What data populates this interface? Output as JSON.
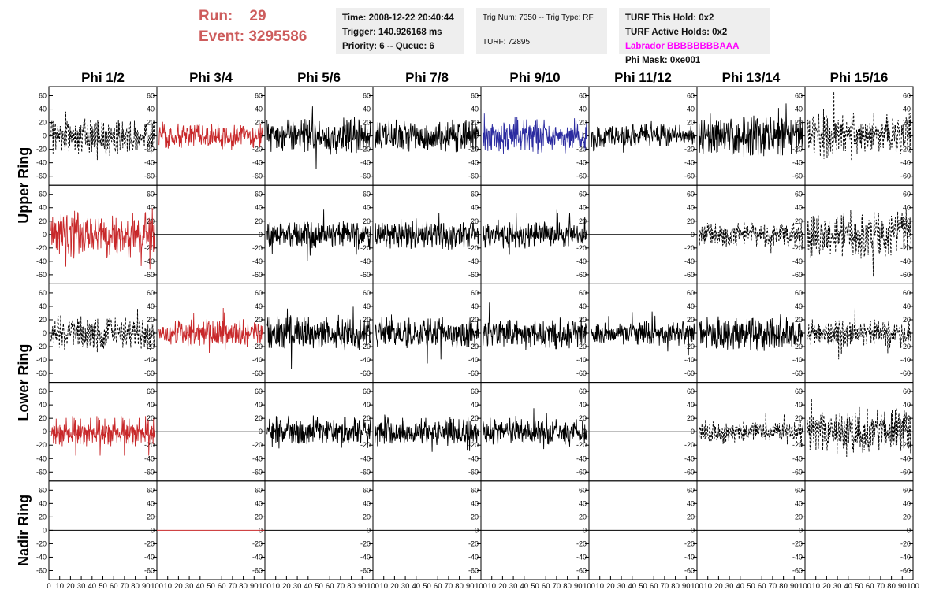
{
  "header": {
    "run_label": "Run:",
    "run_value": "29",
    "event_label": "Event:",
    "event_value": "3295586"
  },
  "info_time": {
    "time": "Time: 2008-12-22 20:40:44",
    "trigger": "Trigger: 140.926168 ms",
    "priority": "Priority: 6 -- Queue: 6"
  },
  "info_trig": {
    "trig": "Trig Num: 7350 -- Trig Type: RF",
    "turf": "TURF: 72895"
  },
  "info_turf": {
    "this_hold": "TURF This Hold: 0x2",
    "active_holds": "TURF Active Holds: 0x2",
    "labrador": "Labrador BBBBBBBBAAA",
    "phi_mask": "Phi Mask: 0xe001"
  },
  "colors": {
    "red": "#c8282a",
    "blue": "#2b2ba0",
    "black": "#000000",
    "header_red": "#cd5c5c",
    "magenta": "#ff00ff"
  },
  "chart_data": {
    "type": "line",
    "columns": [
      "Phi 1/2",
      "Phi 3/4",
      "Phi 5/6",
      "Phi 7/8",
      "Phi 9/10",
      "Phi 11/12",
      "Phi 13/14",
      "Phi 15/16"
    ],
    "row_labels": [
      "Upper Ring",
      "Lower Ring",
      "Nadir Ring"
    ],
    "ylim": [
      -70,
      70
    ],
    "yticks": [
      "60",
      "40",
      "20",
      "0",
      "-20",
      "-40",
      "-60"
    ],
    "xlim": [
      0,
      100
    ],
    "xticks": [
      "0",
      "10",
      "20",
      "30",
      "40",
      "50",
      "60",
      "70",
      "80",
      "90",
      "100"
    ],
    "panels": [
      [
        {
          "color": "black",
          "style": "dashed",
          "amplitude": 18
        },
        {
          "color": "red",
          "style": "solid",
          "amplitude": 14
        },
        {
          "color": "black",
          "style": "solid",
          "amplitude": 18
        },
        {
          "color": "black",
          "style": "solid",
          "amplitude": 16
        },
        {
          "color": "blue",
          "style": "solid",
          "amplitude": 18
        },
        {
          "color": "black",
          "style": "solid",
          "amplitude": 12
        },
        {
          "color": "black",
          "style": "solid",
          "amplitude": 22
        },
        {
          "color": "black",
          "style": "dashed",
          "amplitude": 24
        }
      ],
      [
        {
          "color": "red",
          "style": "solid",
          "amplitude": 24
        },
        {
          "color": "black",
          "style": "flat",
          "amplitude": 0
        },
        {
          "color": "black",
          "style": "solid",
          "amplitude": 14
        },
        {
          "color": "black",
          "style": "solid",
          "amplitude": 16
        },
        {
          "color": "black",
          "style": "solid",
          "amplitude": 14
        },
        {
          "color": "black",
          "style": "flat",
          "amplitude": 0
        },
        {
          "color": "black",
          "style": "dashed",
          "amplitude": 12
        },
        {
          "color": "black",
          "style": "dashed",
          "amplitude": 24
        }
      ],
      [
        {
          "color": "black",
          "style": "dashed",
          "amplitude": 18
        },
        {
          "color": "red",
          "style": "solid",
          "amplitude": 14
        },
        {
          "color": "black",
          "style": "solid",
          "amplitude": 18
        },
        {
          "color": "black",
          "style": "solid",
          "amplitude": 16
        },
        {
          "color": "black",
          "style": "solid",
          "amplitude": 16
        },
        {
          "color": "black",
          "style": "solid",
          "amplitude": 12
        },
        {
          "color": "black",
          "style": "solid",
          "amplitude": 18
        },
        {
          "color": "black",
          "style": "dashed",
          "amplitude": 14
        }
      ],
      [
        {
          "color": "red",
          "style": "solid",
          "amplitude": 16
        },
        {
          "color": "black",
          "style": "flat",
          "amplitude": 0
        },
        {
          "color": "black",
          "style": "solid",
          "amplitude": 16
        },
        {
          "color": "black",
          "style": "solid",
          "amplitude": 14
        },
        {
          "color": "black",
          "style": "solid",
          "amplitude": 14
        },
        {
          "color": "black",
          "style": "flat",
          "amplitude": 0
        },
        {
          "color": "black",
          "style": "dashed",
          "amplitude": 12
        },
        {
          "color": "black",
          "style": "dashed",
          "amplitude": 24
        }
      ],
      [
        {
          "color": "black",
          "style": "flat",
          "amplitude": 0
        },
        {
          "color": "red",
          "style": "flat",
          "amplitude": 0
        },
        {
          "color": "black",
          "style": "flat",
          "amplitude": 0
        },
        {
          "color": "black",
          "style": "flat",
          "amplitude": 0
        },
        {
          "color": "black",
          "style": "flat",
          "amplitude": 0
        },
        {
          "color": "black",
          "style": "flat",
          "amplitude": 0
        },
        {
          "color": "black",
          "style": "flat",
          "amplitude": 0
        },
        {
          "color": "black",
          "style": "flat",
          "amplitude": 0
        }
      ]
    ]
  }
}
